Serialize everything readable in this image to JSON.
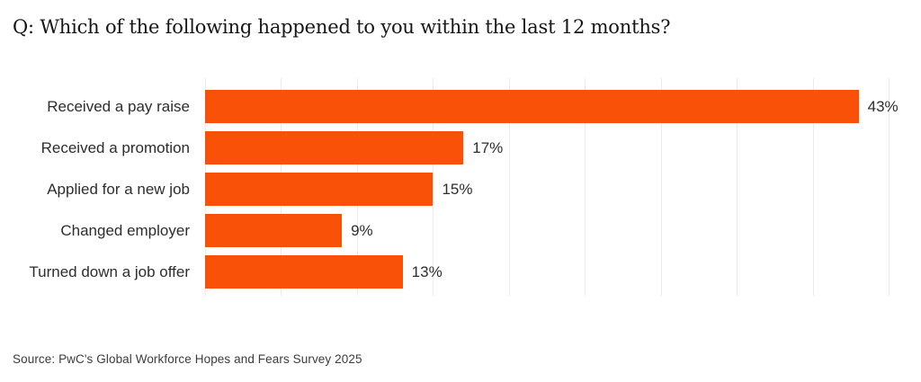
{
  "title": "Q: Which of the following happened to you within the last 12 months?",
  "source": "Source: PwC's Global Workforce Hopes and Fears Survey 2025",
  "colors": {
    "bar": "#fa5108",
    "gridline": "#ececec",
    "title_text": "#161616",
    "label_text": "#2d2d2d",
    "source_text": "#3c3c3c",
    "background": "#ffffff"
  },
  "chart_data": {
    "type": "bar",
    "orientation": "horizontal",
    "title": "Q: Which of the following happened to you within the last 12 months?",
    "categories": [
      "Received a pay raise",
      "Received a promotion",
      "Applied for a new job",
      "Changed employer",
      "Turned down a job offer"
    ],
    "values": [
      43,
      17,
      15,
      9,
      13
    ],
    "value_labels": [
      "43%",
      "17%",
      "15%",
      "9%",
      "13%"
    ],
    "xlabel": "",
    "ylabel": "",
    "xlim": [
      0,
      46.75
    ],
    "gridlines_pct": [
      0,
      5,
      10,
      15,
      20,
      25,
      30,
      35,
      40,
      45
    ],
    "grid": "vertical-only",
    "axis_tick_labels": "none",
    "data_labels": "outside-end",
    "legend": "none"
  }
}
